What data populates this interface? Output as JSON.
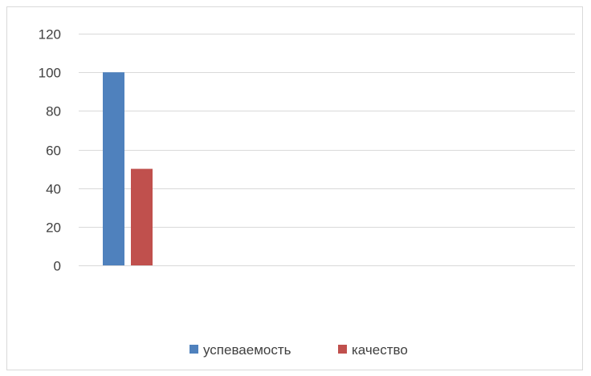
{
  "chart_data": {
    "type": "bar",
    "title": "",
    "xlabel": "",
    "ylabel": "",
    "categories": [
      ""
    ],
    "series": [
      {
        "name": "успеваемость",
        "values": [
          100
        ],
        "color": "#4f81bd"
      },
      {
        "name": "качество",
        "values": [
          50
        ],
        "color": "#c0504d"
      }
    ],
    "ylim": [
      0,
      120
    ],
    "yticks": [
      0,
      20,
      40,
      60,
      80,
      100,
      120
    ],
    "grid": true,
    "legend_position": "bottom"
  }
}
